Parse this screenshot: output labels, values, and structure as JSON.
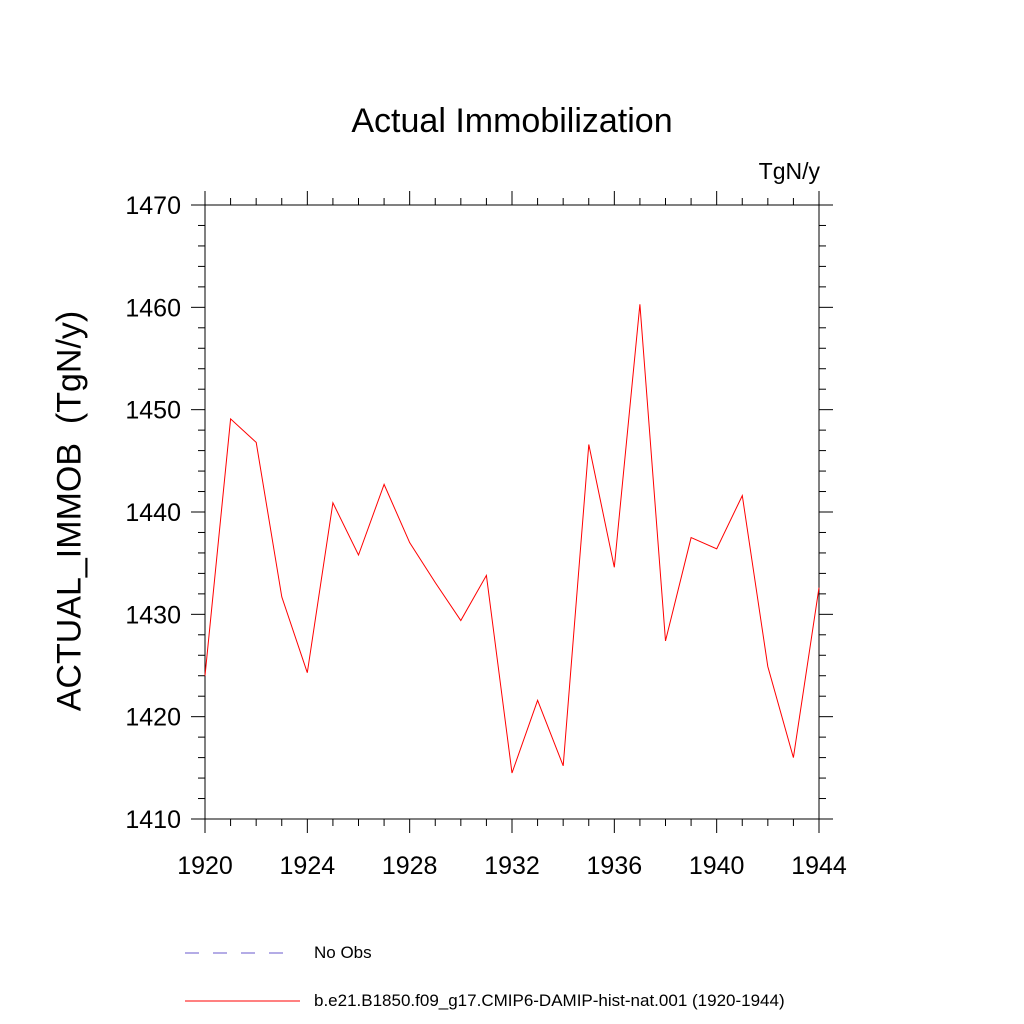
{
  "chart_data": {
    "type": "line",
    "title": "Actual Immobilization",
    "units_label": "TgN/y",
    "ylabel": "ACTUAL_IMMOB  (TgN/y)",
    "xlabel": "",
    "xlim": [
      1920,
      1944
    ],
    "ylim": [
      1410,
      1470
    ],
    "x_ticks": [
      1920,
      1924,
      1928,
      1932,
      1936,
      1940,
      1944
    ],
    "y_ticks": [
      1410,
      1420,
      1430,
      1440,
      1450,
      1460,
      1470
    ],
    "x": [
      1920,
      1921,
      1922,
      1923,
      1924,
      1925,
      1926,
      1927,
      1928,
      1929,
      1930,
      1931,
      1932,
      1933,
      1934,
      1935,
      1936,
      1937,
      1938,
      1939,
      1940,
      1941,
      1942,
      1943,
      1944
    ],
    "series": [
      {
        "name": "b.e21.B1850.f09_g17.CMIP6-DAMIP-hist-nat.001 (1920-1944)",
        "color": "#ff0000",
        "values": [
          1424.0,
          1449.1,
          1446.8,
          1431.7,
          1424.3,
          1440.9,
          1435.8,
          1442.7,
          1437.0,
          1433.1,
          1429.4,
          1433.8,
          1414.5,
          1421.6,
          1415.2,
          1446.6,
          1434.6,
          1460.3,
          1427.4,
          1437.5,
          1436.4,
          1441.6,
          1424.9,
          1416.0,
          1432.6
        ]
      }
    ],
    "legend": [
      {
        "label": "No Obs",
        "color": "#6a5acd",
        "dash": "dashed"
      },
      {
        "label": "b.e21.B1850.f09_g17.CMIP6-DAMIP-hist-nat.001 (1920-1944)",
        "color": "#ff0000",
        "dash": "solid"
      }
    ],
    "grid": false,
    "legend_position": "bottom"
  }
}
